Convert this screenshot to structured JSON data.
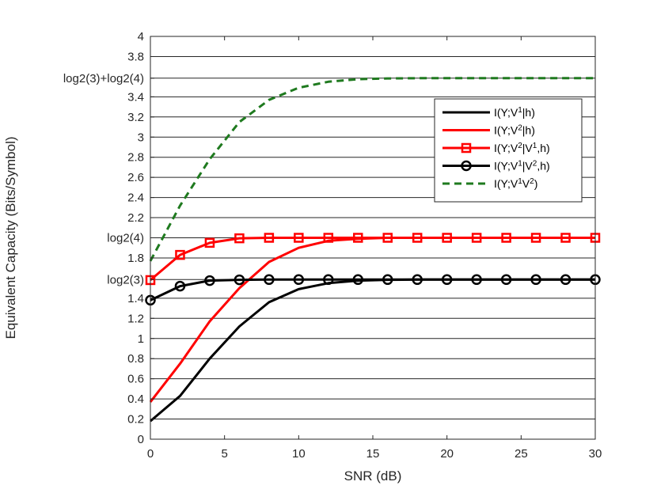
{
  "chart_data": {
    "type": "line",
    "xlabel": "SNR (dB)",
    "ylabel": "Equivalent Capacity (Bits/Symbol)",
    "xlim": [
      0,
      30
    ],
    "ylim": [
      0,
      4
    ],
    "xticks": [
      0,
      5,
      10,
      15,
      20,
      25,
      30
    ],
    "xtick_labels": [
      "0",
      "5",
      "10",
      "15",
      "20",
      "25",
      "30"
    ],
    "yticks": [
      0,
      0.2,
      0.4,
      0.6,
      0.8,
      1,
      1.2,
      1.4,
      1.585,
      1.8,
      2,
      2.2,
      2.4,
      2.6,
      2.8,
      3,
      3.2,
      3.4,
      3.585,
      3.8,
      4
    ],
    "ytick_labels": [
      "0",
      "0.2",
      "0.4",
      "0.6",
      "0.8",
      "1",
      "1.2",
      "1.4",
      "log2(3)",
      "1.8",
      "log2(4)",
      "2.2",
      "2.4",
      "2.6",
      "2.8",
      "3",
      "3.2",
      "3.4",
      "log2(3)+log2(4)",
      "3.8",
      "4"
    ],
    "grid": "horizontal",
    "legend_position": "top-right",
    "x": [
      0,
      2,
      4,
      6,
      8,
      10,
      12,
      14,
      16,
      18,
      20,
      22,
      24,
      26,
      28,
      30
    ],
    "series": [
      {
        "name": "I(Y;V1|h)",
        "label_parts": [
          [
            "I(Y;V",
            "normal"
          ],
          [
            "1",
            "super"
          ],
          [
            "|h)",
            "normal"
          ]
        ],
        "color": "#000000",
        "dash": "solid",
        "marker": "none",
        "values": [
          0.18,
          0.43,
          0.8,
          1.12,
          1.36,
          1.49,
          1.55,
          1.575,
          1.583,
          1.585,
          1.585,
          1.585,
          1.585,
          1.585,
          1.585,
          1.585
        ]
      },
      {
        "name": "I(Y;V2|h)",
        "label_parts": [
          [
            "I(Y;V",
            "normal"
          ],
          [
            "2",
            "super"
          ],
          [
            "|h)",
            "normal"
          ]
        ],
        "color": "#ff0000",
        "dash": "solid",
        "marker": "none",
        "values": [
          0.37,
          0.75,
          1.17,
          1.5,
          1.76,
          1.9,
          1.97,
          1.99,
          2.0,
          2.0,
          2.0,
          2.0,
          2.0,
          2.0,
          2.0,
          2.0
        ]
      },
      {
        "name": "I(Y;V2|V1,h)",
        "label_parts": [
          [
            "I(Y;V",
            "normal"
          ],
          [
            "2",
            "super"
          ],
          [
            "|V",
            "normal"
          ],
          [
            "1",
            "super"
          ],
          [
            ",h)",
            "normal"
          ]
        ],
        "color": "#ff0000",
        "dash": "solid",
        "marker": "square",
        "values": [
          1.58,
          1.83,
          1.95,
          1.995,
          2.0,
          2.0,
          2.0,
          2.0,
          2.0,
          2.0,
          2.0,
          2.0,
          2.0,
          2.0,
          2.0,
          2.0
        ]
      },
      {
        "name": "I(Y;V1|V2,h)",
        "label_parts": [
          [
            "I(Y;V",
            "normal"
          ],
          [
            "1",
            "super"
          ],
          [
            "|V",
            "normal"
          ],
          [
            "2",
            "super"
          ],
          [
            ",h)",
            "normal"
          ]
        ],
        "color": "#000000",
        "dash": "solid",
        "marker": "circle",
        "values": [
          1.38,
          1.52,
          1.575,
          1.583,
          1.585,
          1.585,
          1.585,
          1.585,
          1.585,
          1.585,
          1.585,
          1.585,
          1.585,
          1.585,
          1.585,
          1.585
        ]
      },
      {
        "name": "I(Y;V1V2)",
        "label_parts": [
          [
            "I(Y;V",
            "normal"
          ],
          [
            "1",
            "super"
          ],
          [
            "V",
            "normal"
          ],
          [
            "2",
            "super"
          ],
          [
            ")",
            "normal"
          ]
        ],
        "color": "#1f7a1f",
        "dash": "dashed",
        "marker": "none",
        "values": [
          1.77,
          2.32,
          2.78,
          3.15,
          3.37,
          3.49,
          3.55,
          3.575,
          3.583,
          3.585,
          3.585,
          3.585,
          3.585,
          3.585,
          3.585,
          3.585
        ]
      }
    ]
  }
}
